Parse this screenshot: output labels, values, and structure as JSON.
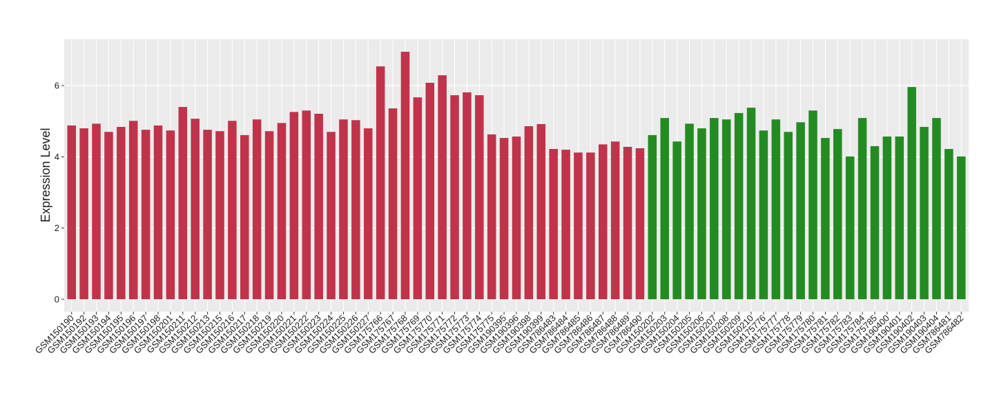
{
  "chart_data": {
    "type": "bar",
    "y_label": "Expression Level",
    "categories": [
      "GSM150190",
      "GSM150192",
      "GSM150193",
      "GSM150194",
      "GSM150195",
      "GSM150196",
      "GSM150197",
      "GSM150198",
      "GSM150201",
      "GSM150211",
      "GSM150212",
      "GSM150213",
      "GSM150215",
      "GSM150216",
      "GSM150217",
      "GSM150218",
      "GSM150219",
      "GSM150220",
      "GSM150221",
      "GSM150222",
      "GSM150223",
      "GSM150224",
      "GSM150225",
      "GSM150226",
      "GSM150227",
      "GSM175766",
      "GSM175767",
      "GSM175768",
      "GSM175769",
      "GSM175770",
      "GSM175771",
      "GSM175772",
      "GSM175773",
      "GSM175774",
      "GSM175775",
      "GSM190395",
      "GSM190396",
      "GSM190398",
      "GSM190399",
      "GSM786483",
      "GSM786484",
      "GSM786485",
      "GSM786486",
      "GSM786487",
      "GSM786488",
      "GSM786489",
      "GSM786490",
      "GSM150202",
      "GSM150203",
      "GSM150204",
      "GSM150205",
      "GSM150206",
      "GSM150207",
      "GSM150208",
      "GSM150209",
      "GSM150210",
      "GSM175776",
      "GSM175777",
      "GSM175778",
      "GSM175779",
      "GSM175780",
      "GSM175781",
      "GSM175782",
      "GSM175783",
      "GSM175784",
      "GSM175785",
      "GSM190400",
      "GSM190401",
      "GSM190402",
      "GSM190403",
      "GSM190404",
      "GSM786481",
      "GSM786482"
    ],
    "values": [
      4.88,
      4.8,
      4.93,
      4.7,
      4.84,
      5.01,
      4.76,
      4.88,
      4.74,
      5.4,
      5.07,
      4.76,
      4.72,
      5.01,
      4.61,
      5.05,
      4.72,
      4.95,
      5.26,
      5.3,
      5.21,
      4.7,
      5.05,
      5.03,
      4.8,
      6.54,
      5.36,
      6.95,
      5.67,
      6.08,
      6.29,
      5.73,
      5.81,
      5.73,
      4.63,
      4.53,
      4.57,
      4.86,
      4.92,
      4.22,
      4.2,
      4.12,
      4.12,
      4.35,
      4.43,
      4.28,
      4.24,
      4.61,
      5.09,
      4.43,
      4.93,
      4.8,
      5.09,
      5.05,
      5.23,
      5.38,
      4.74,
      5.05,
      4.7,
      4.97,
      5.3,
      4.53,
      4.78,
      4.01,
      5.09,
      4.3,
      4.57,
      4.57,
      5.96,
      4.84,
      5.09,
      4.22,
      4.01
    ],
    "colors": [
      "#c0334a",
      "#c0334a",
      "#c0334a",
      "#c0334a",
      "#c0334a",
      "#c0334a",
      "#c0334a",
      "#c0334a",
      "#c0334a",
      "#c0334a",
      "#c0334a",
      "#c0334a",
      "#c0334a",
      "#c0334a",
      "#c0334a",
      "#c0334a",
      "#c0334a",
      "#c0334a",
      "#c0334a",
      "#c0334a",
      "#c0334a",
      "#c0334a",
      "#c0334a",
      "#c0334a",
      "#c0334a",
      "#c0334a",
      "#c0334a",
      "#c0334a",
      "#c0334a",
      "#c0334a",
      "#c0334a",
      "#c0334a",
      "#c0334a",
      "#c0334a",
      "#c0334a",
      "#c0334a",
      "#c0334a",
      "#c0334a",
      "#c0334a",
      "#c0334a",
      "#c0334a",
      "#c0334a",
      "#c0334a",
      "#c0334a",
      "#c0334a",
      "#c0334a",
      "#c0334a",
      "#238b22",
      "#238b22",
      "#238b22",
      "#238b22",
      "#238b22",
      "#238b22",
      "#238b22",
      "#238b22",
      "#238b22",
      "#238b22",
      "#238b22",
      "#238b22",
      "#238b22",
      "#238b22",
      "#238b22",
      "#238b22",
      "#238b22",
      "#238b22",
      "#238b22",
      "#238b22",
      "#238b22",
      "#238b22",
      "#238b22",
      "#238b22",
      "#238b22",
      "#238b22"
    ],
    "ylim": [
      -0.35,
      7.3
    ],
    "yticks": [
      0,
      2,
      4,
      6
    ],
    "grid": true
  }
}
